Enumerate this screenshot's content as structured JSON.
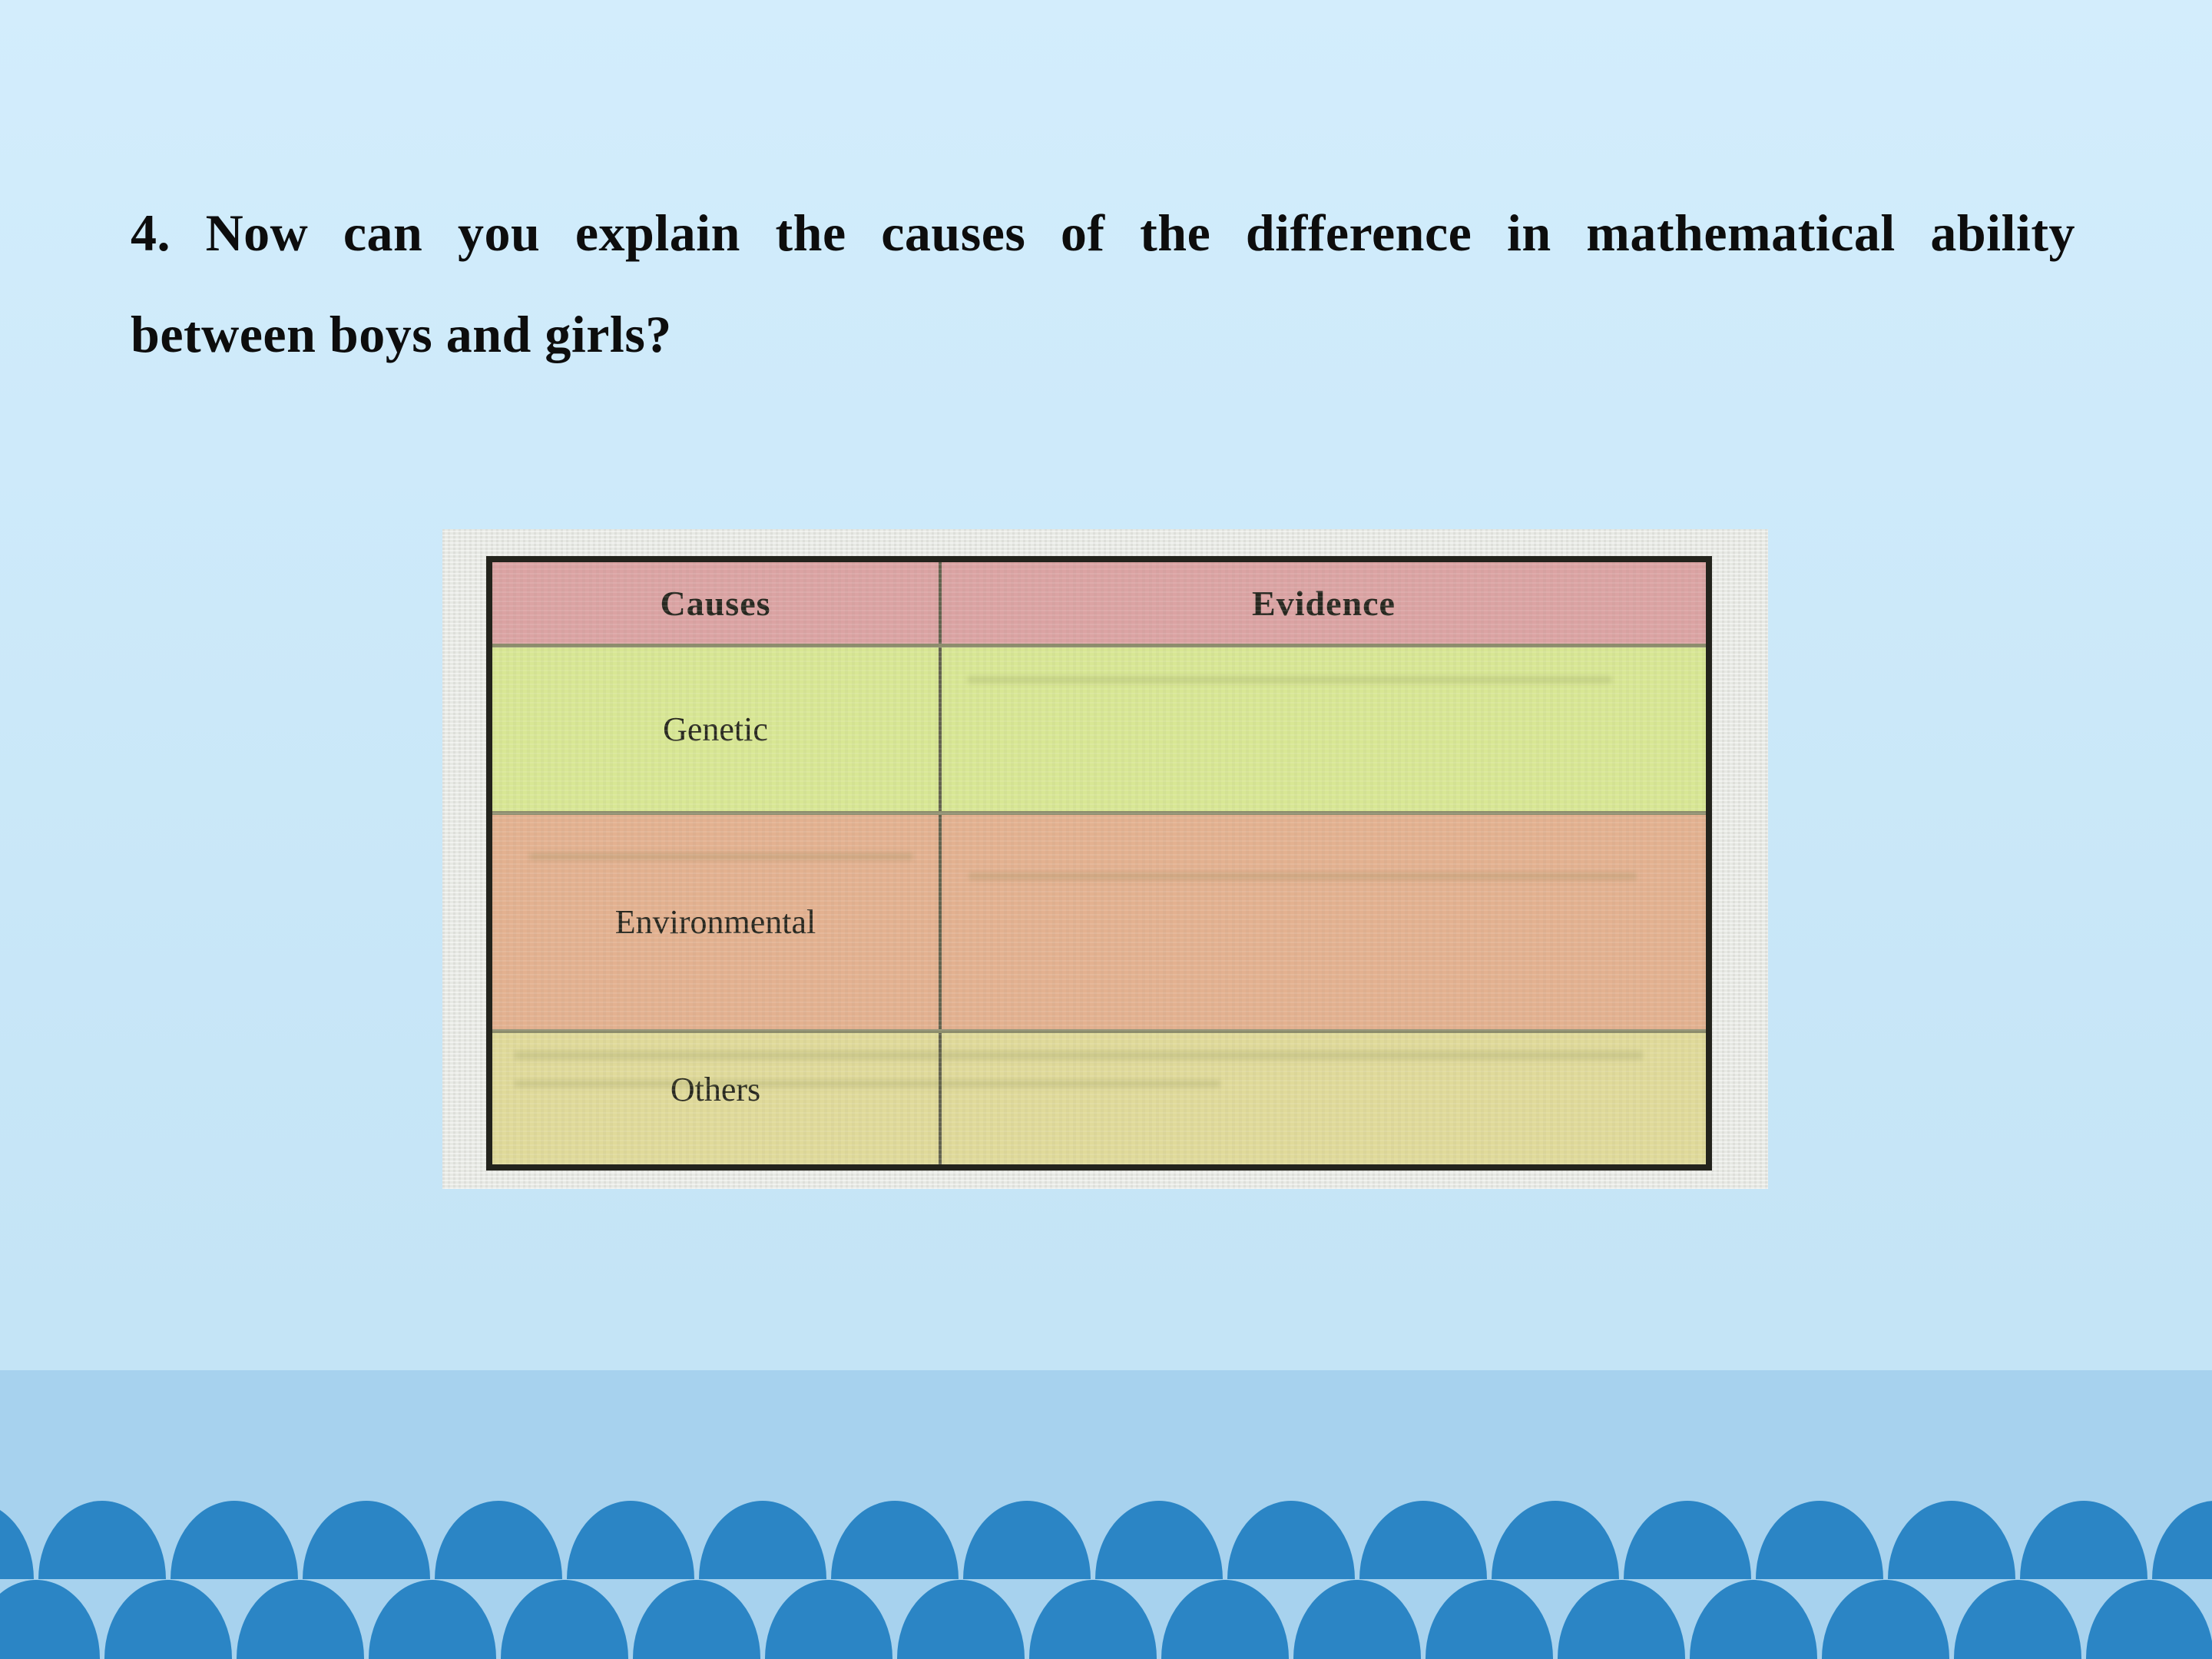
{
  "slide": {
    "question": {
      "line1": "4. Now can you explain the causes of the difference in mathematical ability",
      "line2": "between boys and girls?"
    },
    "table": {
      "headers": [
        "Causes",
        "Evidence"
      ],
      "rows": [
        {
          "cause": "Genetic",
          "evidence": ""
        },
        {
          "cause": "Environmental",
          "evidence": ""
        },
        {
          "cause": "Others",
          "evidence": ""
        }
      ]
    },
    "colors": {
      "bg_top": "#d3edfc",
      "bg_bottom": "#c4e4f6",
      "band": "#a7d2ee",
      "dome": "#2b85c5",
      "paper": "#e7e9e4",
      "tbl_border": "#23231c",
      "header_bg": "#dba3a3",
      "genetic_bg": "#d8e794",
      "env_bg": "#e3b190",
      "others_bg": "#e0da9a",
      "divider": "#8d8d6d",
      "coldiv": "#62624e",
      "ink": "#26261e",
      "title": "#0d0d0d"
    }
  }
}
